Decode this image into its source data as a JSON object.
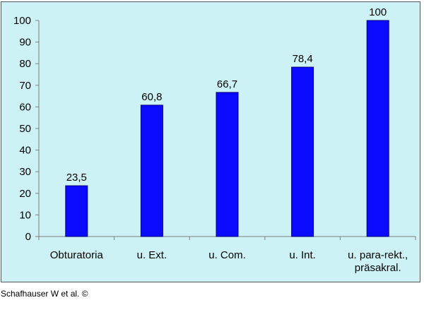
{
  "chart_data": {
    "type": "bar",
    "categories": [
      [
        "Obturatoria"
      ],
      [
        "u. Ext."
      ],
      [
        "u. Com."
      ],
      [
        "u. Int."
      ],
      [
        "u. para-rekt.,",
        "präsakral."
      ]
    ],
    "values": [
      23.5,
      60.8,
      66.7,
      78.4,
      100
    ],
    "data_labels": [
      "23,5",
      "60,8",
      "66,7",
      "78,4",
      "100"
    ],
    "yticks": [
      "0",
      "10",
      "20",
      "30",
      "40",
      "50",
      "60",
      "70",
      "80",
      "90",
      "100"
    ],
    "ylim": [
      0,
      100
    ],
    "grid": false,
    "legend": "none",
    "title": "",
    "xlabel": "",
    "ylabel": "",
    "colors": {
      "bar": "#0a0aff",
      "bar_edge": "#00007a",
      "plot_bg": "#ccf2f5",
      "axis": "#808080"
    }
  },
  "credit": "Schafhauser W et al. ©"
}
